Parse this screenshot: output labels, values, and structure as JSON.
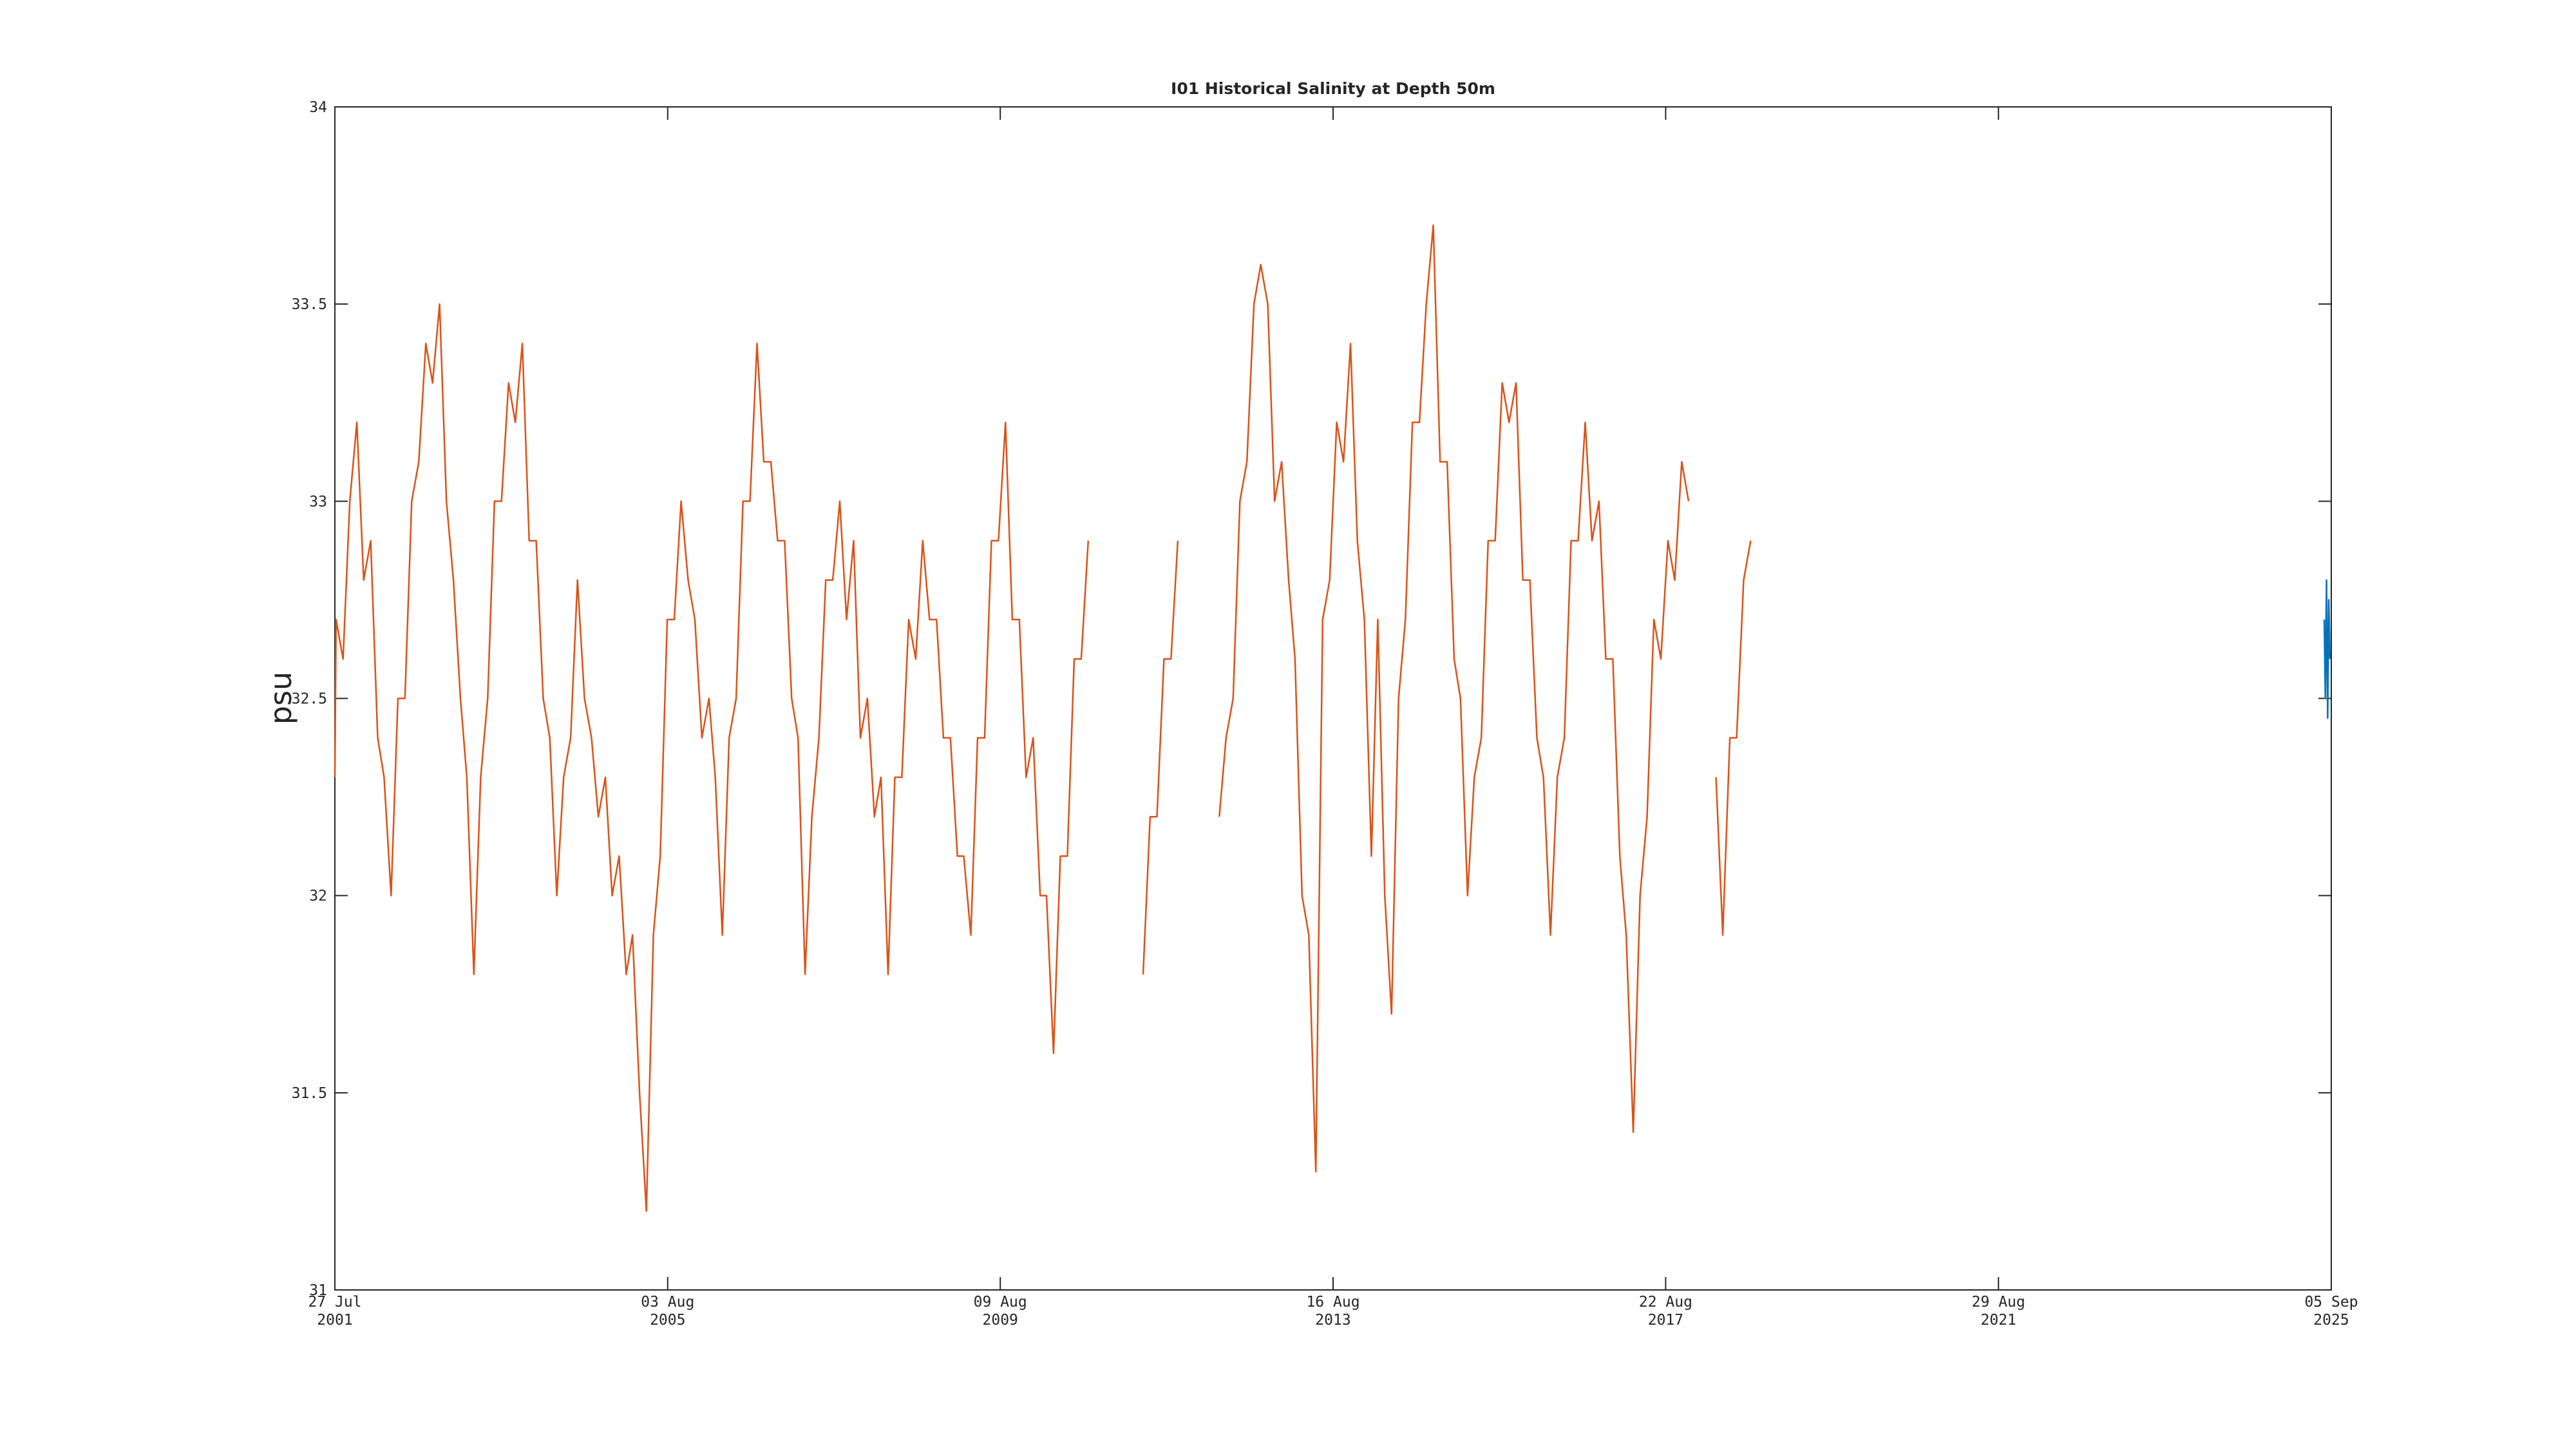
{
  "chart_data": {
    "type": "line",
    "title": "I01 Historical Salinity at Depth 50m",
    "y_label": "psu",
    "xlim": [
      "2001-07-27",
      "2025-09-05"
    ],
    "xticks": [
      {
        "value": "2001-07-27",
        "label": "27 Jul 2001"
      },
      {
        "value": "2005-08-03",
        "label": "03 Aug 2005"
      },
      {
        "value": "2009-08-09",
        "label": "09 Aug 2009"
      },
      {
        "value": "2013-08-16",
        "label": "16 Aug 2013"
      },
      {
        "value": "2017-08-22",
        "label": "22 Aug 2017"
      },
      {
        "value": "2021-08-29",
        "label": "29 Aug 2021"
      },
      {
        "value": "2025-09-05",
        "label": "05 Sep 2025"
      }
    ],
    "ylim": [
      31,
      34
    ],
    "yticks": [
      31,
      31.5,
      32,
      32.5,
      33,
      33.5,
      34
    ],
    "grid": false,
    "series": [
      {
        "color": "#d95319",
        "x": [
          "2001-07-27",
          "2001-08-01",
          "2001-09-01",
          "2001-10-01",
          "2001-11-01",
          "2001-12-01",
          "2002-01-01",
          "2002-02-01",
          "2002-03-01",
          "2002-04-01",
          "2002-05-01",
          "2002-06-01",
          "2002-07-01",
          "2002-08-01",
          "2002-09-01",
          "2002-10-01",
          "2002-11-01",
          "2002-12-01",
          "2003-01-01",
          "2003-02-01",
          "2003-03-01",
          "2003-04-01",
          "2003-05-01",
          "2003-06-01",
          "2003-07-01",
          "2003-08-01",
          "2003-09-01",
          "2003-10-01",
          "2003-11-01",
          "2003-12-01",
          "2004-01-01",
          "2004-02-01",
          "2004-03-01",
          "2004-04-01",
          "2004-05-01",
          "2004-06-01",
          "2004-07-01",
          "2004-08-01",
          "2004-09-01",
          "2004-10-01",
          "2004-11-01",
          "2004-12-01",
          "2005-01-01",
          "2005-02-01",
          "2005-03-01",
          "2005-04-01",
          "2005-05-01",
          "2005-06-01",
          "2005-07-01",
          "2005-08-01",
          "2005-09-01",
          "2005-10-01",
          "2005-11-01",
          "2005-12-01",
          "2006-01-01",
          "2006-02-01",
          "2006-03-01",
          "2006-04-01",
          "2006-05-01",
          "2006-06-01",
          "2006-07-01",
          "2006-08-01",
          "2006-09-01",
          "2006-10-01",
          "2006-11-01",
          "2006-12-01",
          "2007-01-01",
          "2007-02-01",
          "2007-03-01",
          "2007-04-01",
          "2007-05-01",
          "2007-06-01",
          "2007-07-01",
          "2007-08-01",
          "2007-09-01",
          "2007-10-01",
          "2007-11-01",
          "2007-12-01",
          "2008-01-01",
          "2008-02-01",
          "2008-03-01",
          "2008-04-01",
          "2008-05-01",
          "2008-06-01",
          "2008-07-01",
          "2008-08-01",
          "2008-09-01",
          "2008-10-01",
          "2008-11-01",
          "2008-12-01",
          "2009-01-01",
          "2009-02-01",
          "2009-03-01",
          "2009-04-01",
          "2009-05-01",
          "2009-06-01",
          "2009-07-01",
          "2009-08-01",
          "2009-09-01",
          "2009-10-01",
          "2009-11-01",
          "2009-12-01",
          "2010-01-01",
          "2010-02-01",
          "2010-03-01",
          "2010-04-01",
          "2010-05-01",
          "2010-06-01",
          "2010-07-01",
          "2010-08-01",
          "2010-09-01",
          "2010-10-01",
          "2011-05-01",
          "2011-06-01",
          "2011-07-01",
          "2011-08-01",
          "2011-09-01",
          "2011-10-01",
          "2011-11-01",
          "2012-04-01",
          "2012-05-01",
          "2012-06-01",
          "2012-07-01",
          "2012-08-01",
          "2012-09-01",
          "2012-10-01",
          "2012-11-01",
          "2012-12-01",
          "2013-01-01",
          "2013-02-01",
          "2013-03-01",
          "2013-04-01",
          "2013-05-01",
          "2013-06-01",
          "2013-07-01",
          "2013-08-01",
          "2013-09-01",
          "2013-10-01",
          "2013-11-01",
          "2013-12-01",
          "2014-01-01",
          "2014-02-01",
          "2014-03-01",
          "2014-04-01",
          "2014-05-01",
          "2014-06-01",
          "2014-07-01",
          "2014-08-01",
          "2014-09-01",
          "2014-10-01",
          "2014-11-01",
          "2014-12-01",
          "2015-01-01",
          "2015-02-01",
          "2015-03-01",
          "2015-04-01",
          "2015-05-01",
          "2015-06-01",
          "2015-07-01",
          "2015-08-01",
          "2015-09-01",
          "2015-10-01",
          "2015-11-01",
          "2015-12-01",
          "2016-01-01",
          "2016-02-01",
          "2016-03-01",
          "2016-04-01",
          "2016-05-01",
          "2016-06-01",
          "2016-07-01",
          "2016-08-01",
          "2016-09-01",
          "2016-10-01",
          "2016-11-01",
          "2016-12-01",
          "2017-01-01",
          "2017-02-01",
          "2017-03-01",
          "2017-04-01",
          "2017-05-01",
          "2017-06-01",
          "2017-07-01",
          "2017-08-01",
          "2017-09-01",
          "2017-10-01",
          "2017-11-01",
          "2017-12-01",
          "2018-01-01",
          "2018-04-01",
          "2018-05-01",
          "2018-06-01",
          "2018-07-01",
          "2018-08-01",
          "2018-09-01"
        ],
        "values": [
          32.3,
          32.7,
          32.6,
          33.0,
          33.2,
          32.8,
          32.9,
          32.4,
          32.3,
          32.0,
          32.5,
          32.5,
          33.0,
          33.1,
          33.4,
          33.3,
          33.5,
          33.0,
          32.8,
          32.5,
          32.3,
          31.8,
          32.3,
          32.5,
          33.0,
          33.0,
          33.3,
          33.2,
          33.4,
          32.9,
          32.9,
          32.5,
          32.4,
          32.0,
          32.3,
          32.4,
          32.8,
          32.5,
          32.4,
          32.2,
          32.3,
          32.0,
          32.1,
          31.8,
          31.9,
          31.5,
          31.2,
          31.9,
          32.1,
          32.7,
          32.7,
          33.0,
          32.8,
          32.7,
          32.4,
          32.5,
          32.3,
          31.9,
          32.4,
          32.5,
          33.0,
          33.0,
          33.4,
          33.1,
          33.1,
          32.9,
          32.9,
          32.5,
          32.4,
          31.8,
          32.2,
          32.4,
          32.8,
          32.8,
          33.0,
          32.7,
          32.9,
          32.4,
          32.5,
          32.2,
          32.3,
          31.8,
          32.3,
          32.3,
          32.7,
          32.6,
          32.9,
          32.7,
          32.7,
          32.4,
          32.4,
          32.1,
          32.1,
          31.9,
          32.4,
          32.4,
          32.9,
          32.9,
          33.2,
          32.7,
          32.7,
          32.3,
          32.4,
          32.0,
          32.0,
          31.6,
          32.1,
          32.1,
          32.6,
          32.6,
          32.9,
          null,
          31.8,
          32.2,
          32.2,
          32.6,
          32.6,
          32.9,
          null,
          32.2,
          32.4,
          32.5,
          33.0,
          33.1,
          33.5,
          33.6,
          33.5,
          33.0,
          33.1,
          32.8,
          32.6,
          32.0,
          31.9,
          31.3,
          32.7,
          32.8,
          33.2,
          33.1,
          33.4,
          32.9,
          32.7,
          32.1,
          32.7,
          32.0,
          31.7,
          32.5,
          32.7,
          33.2,
          33.2,
          33.5,
          33.7,
          33.1,
          33.1,
          32.6,
          32.5,
          32.0,
          32.3,
          32.4,
          32.9,
          32.9,
          33.3,
          33.2,
          33.3,
          32.8,
          32.8,
          32.4,
          32.3,
          31.9,
          32.3,
          32.4,
          32.9,
          32.9,
          33.2,
          32.9,
          33.0,
          32.6,
          32.6,
          32.1,
          31.9,
          31.4,
          32.0,
          32.2,
          32.7,
          32.6,
          32.9,
          32.8,
          33.1,
          33.0,
          null,
          32.3,
          31.9,
          32.4,
          32.4,
          32.8,
          32.9
        ]
      },
      {
        "color": "#0072bd",
        "x": [
          "2025-08-05",
          "2025-08-10",
          "2025-08-15",
          "2025-08-20",
          "2025-08-25",
          "2025-08-30"
        ],
        "values": [
          32.7,
          32.5,
          32.8,
          32.45,
          32.75,
          32.6
        ]
      }
    ]
  }
}
